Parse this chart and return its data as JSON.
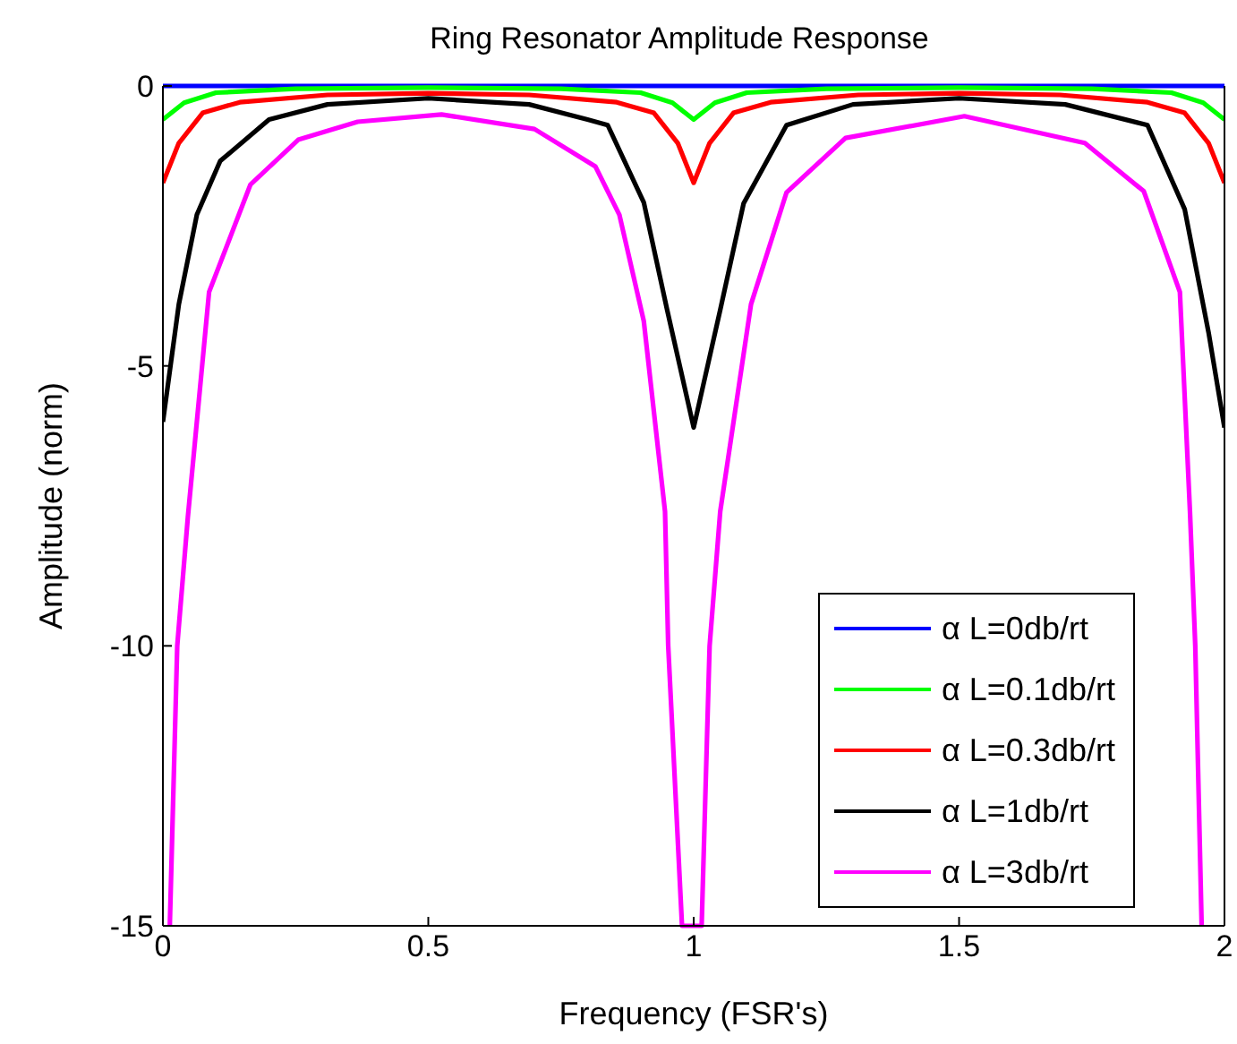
{
  "chart_data": {
    "type": "line",
    "title": "Ring Resonator Amplitude Response",
    "xlabel": "Frequency (FSR's)",
    "ylabel": "Amplitude (norm)",
    "xlim": [
      0,
      2
    ],
    "ylim": [
      -15,
      0
    ],
    "xticks": [
      0,
      0.5,
      1,
      1.5,
      2
    ],
    "yticks": [
      -15,
      -10,
      -5,
      0
    ],
    "grid": false,
    "legend": "bottom right",
    "line_style": "solid",
    "marker": "none",
    "series": [
      {
        "name": "α L=0db/rt",
        "color": "#0000ff",
        "x": [
          0,
          0.5,
          1,
          1.5,
          2
        ],
        "values": [
          0,
          0,
          0,
          0,
          0
        ]
      },
      {
        "name": "α L=0.1db/rt",
        "color": "#00ff00",
        "x": [
          0,
          0.04,
          0.1,
          0.25,
          0.5,
          0.75,
          0.9,
          0.96,
          1,
          1.04,
          1.1,
          1.25,
          1.5,
          1.75,
          1.9,
          1.96,
          2
        ],
        "values": [
          -0.6,
          -0.3,
          -0.12,
          -0.05,
          -0.03,
          -0.05,
          -0.12,
          -0.3,
          -0.6,
          -0.3,
          -0.12,
          -0.05,
          -0.03,
          -0.05,
          -0.12,
          -0.3,
          -0.6
        ]
      },
      {
        "name": "α L=0.3db/rt",
        "color": "#ff0000",
        "x": [
          0,
          0.03,
          0.075,
          0.145,
          0.31,
          0.5,
          0.69,
          0.855,
          0.925,
          0.97,
          1,
          1.03,
          1.075,
          1.145,
          1.31,
          1.5,
          1.69,
          1.855,
          1.925,
          1.97,
          2
        ],
        "values": [
          -1.73,
          -1.02,
          -0.48,
          -0.29,
          -0.16,
          -0.13,
          -0.16,
          -0.29,
          -0.48,
          -1.02,
          -1.73,
          -1.02,
          -0.48,
          -0.29,
          -0.16,
          -0.13,
          -0.16,
          -0.29,
          -0.48,
          -1.02,
          -1.73
        ]
      },
      {
        "name": "α L=1db/rt",
        "color": "#000000",
        "x": [
          0,
          0.03,
          0.064,
          0.108,
          0.2,
          0.31,
          0.5,
          0.69,
          0.8,
          0.838,
          0.906,
          0.95,
          1,
          1.05,
          1.094,
          1.175,
          1.3,
          1.5,
          1.7,
          1.855,
          1.925,
          1.97,
          2
        ],
        "values": [
          -6.0,
          -3.9,
          -2.3,
          -1.34,
          -0.6,
          -0.33,
          -0.22,
          -0.33,
          -0.6,
          -0.7,
          -2.08,
          -4.0,
          -6.1,
          -4.0,
          -2.1,
          -0.7,
          -0.33,
          -0.22,
          -0.33,
          -0.7,
          -2.2,
          -4.4,
          -6.1
        ]
      },
      {
        "name": "α L=3db/rt",
        "color": "#ff00ff",
        "x": [
          0.013,
          0.027,
          0.047,
          0.087,
          0.165,
          0.255,
          0.367,
          0.525,
          0.7,
          0.815,
          0.86,
          0.906,
          0.946,
          0.952,
          0.978,
          1.015,
          1.03,
          1.05,
          1.108,
          1.175,
          1.286,
          1.51,
          1.737,
          1.848,
          1.916,
          1.935,
          1.945,
          1.957
        ],
        "values": [
          -15,
          -10,
          -7.7,
          -3.68,
          -1.76,
          -0.96,
          -0.64,
          -0.51,
          -0.77,
          -1.44,
          -2.3,
          -4.2,
          -7.6,
          -10,
          -15,
          -15,
          -10,
          -7.6,
          -3.9,
          -1.9,
          -0.93,
          -0.54,
          -1.02,
          -1.88,
          -3.68,
          -7.6,
          -10,
          -15
        ]
      }
    ]
  }
}
